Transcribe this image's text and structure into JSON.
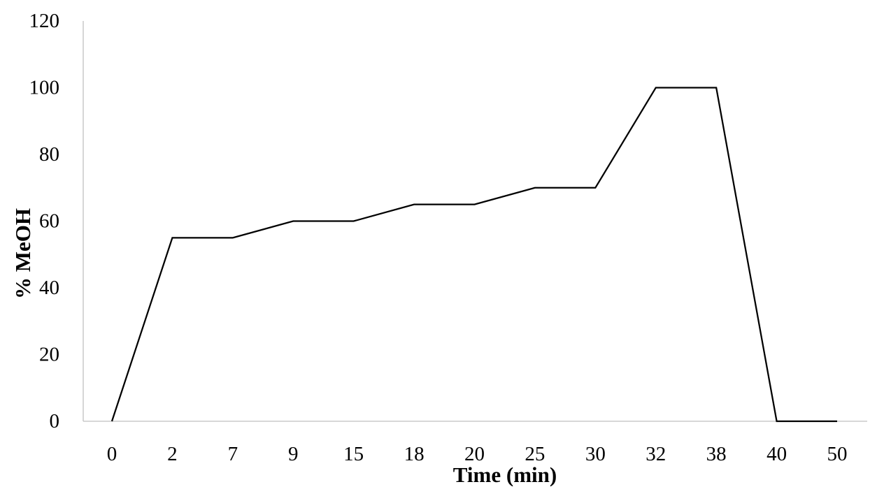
{
  "chart_data": {
    "type": "line",
    "title": "",
    "xlabel": "Time (min)",
    "ylabel": "% MeOH",
    "categories": [
      "0",
      "2",
      "7",
      "9",
      "15",
      "18",
      "20",
      "25",
      "30",
      "32",
      "38",
      "40",
      "50"
    ],
    "x_values_min": [
      0,
      2,
      7,
      9,
      15,
      18,
      20,
      25,
      30,
      32,
      38,
      40,
      50
    ],
    "series": [
      {
        "name": "% MeOH",
        "values": [
          0,
          55,
          55,
          60,
          60,
          65,
          65,
          70,
          70,
          100,
          100,
          0,
          0
        ]
      }
    ],
    "ylim": [
      0,
      120
    ],
    "y_ticks": [
      0,
      20,
      40,
      60,
      80,
      100,
      120
    ],
    "grid": "off",
    "legend": "none",
    "line_color": "#000000",
    "axis_color": "#bfbfbf",
    "text_color": "#000000"
  }
}
